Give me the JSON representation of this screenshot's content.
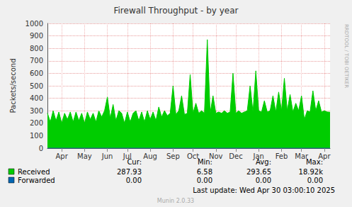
{
  "chart_data": {
    "type": "area",
    "title": "Firewall Throughput - by year",
    "y_label": "Packets/second",
    "categories": [
      null,
      null,
      null,
      null,
      null,
      "Apr",
      null,
      null,
      null,
      null,
      null,
      null,
      null,
      "May",
      null,
      null,
      null,
      null,
      null,
      null,
      null,
      "Jun",
      null,
      null,
      null,
      null,
      null,
      null,
      "Jul",
      null,
      null,
      null,
      null,
      null,
      null,
      null,
      "Aug",
      null,
      null,
      null,
      null,
      null,
      null,
      null,
      "Sep",
      null,
      null,
      null,
      null,
      null,
      null,
      "Oct",
      null,
      null,
      null,
      null,
      null,
      null,
      null,
      "Nov",
      null,
      null,
      null,
      null,
      null,
      null,
      "Dec",
      null,
      null,
      null,
      null,
      null,
      null,
      null,
      "Jan",
      null,
      null,
      null,
      null,
      null,
      null,
      null,
      "Feb",
      null,
      null,
      null,
      null,
      null,
      null,
      "Mar",
      null,
      null,
      null,
      null,
      null,
      null,
      null,
      "Apr",
      null,
      null
    ],
    "series": [
      {
        "name": "Received",
        "color": "#00cc00",
        "values": [
          280,
          210,
          300,
          220,
          290,
          200,
          280,
          230,
          290,
          210,
          290,
          220,
          280,
          200,
          290,
          230,
          280,
          210,
          300,
          250,
          300,
          410,
          240,
          350,
          220,
          300,
          280,
          200,
          290,
          210,
          280,
          300,
          220,
          290,
          210,
          300,
          230,
          290,
          220,
          330,
          250,
          300,
          260,
          280,
          500,
          270,
          300,
          420,
          270,
          280,
          590,
          280,
          360,
          280,
          300,
          280,
          870,
          280,
          420,
          280,
          290,
          280,
          300,
          280,
          290,
          600,
          280,
          300,
          280,
          290,
          300,
          500,
          290,
          620,
          300,
          290,
          380,
          290,
          300,
          420,
          290,
          450,
          300,
          560,
          300,
          430,
          290,
          360,
          300,
          420,
          230,
          300,
          290,
          460,
          300,
          380,
          290,
          300,
          290,
          288
        ],
        "stats": [
          {
            "value": 287.93,
            "label": "287.93"
          },
          {
            "value": 6.58,
            "label": "6.58"
          },
          {
            "value": 293.65,
            "label": "293.65"
          },
          {
            "value": 18920,
            "label": "18.92k"
          }
        ]
      },
      {
        "name": "Forwarded",
        "color": "#0066b3",
        "values": [
          0,
          0,
          0,
          0,
          0,
          0,
          0,
          0,
          0,
          0,
          0,
          0,
          0,
          0,
          0,
          0,
          0,
          0,
          0,
          0,
          0,
          0,
          0,
          0,
          0,
          0,
          0,
          0,
          0,
          0,
          0,
          0,
          0,
          0,
          0,
          0,
          0,
          0,
          0,
          0,
          0,
          0,
          0,
          0,
          0,
          0,
          0,
          0,
          0,
          0,
          0,
          0,
          0,
          0,
          0,
          0,
          0,
          0,
          0,
          0,
          0,
          0,
          0,
          0,
          0,
          0,
          0,
          0,
          0,
          0,
          0,
          0,
          0,
          0,
          0,
          0,
          0,
          0,
          0,
          0,
          0,
          0,
          0,
          0,
          0,
          0,
          0,
          0,
          0,
          0,
          0,
          0,
          0,
          0,
          0,
          0,
          0,
          0,
          0,
          0
        ],
        "stats": [
          {
            "value": 0,
            "label": "0.00"
          },
          {
            "value": 0,
            "label": "0.00"
          },
          {
            "value": 0,
            "label": "0.00"
          },
          {
            "value": 0,
            "label": "0.00"
          }
        ]
      }
    ],
    "stat_columns": [
      "Cur:",
      "Min:",
      "Avg:",
      "Max:"
    ],
    "last_update": "Last update: Wed Apr 30 03:00:10 2025",
    "footer": "Munin 2.0.33",
    "side_text": "RRDTOOL / TOBI OETIKER",
    "ylim": [
      0,
      1000
    ],
    "yticks": [
      0,
      100,
      200,
      300,
      400,
      500,
      600,
      700,
      800,
      900,
      1000
    ],
    "grid": true
  }
}
